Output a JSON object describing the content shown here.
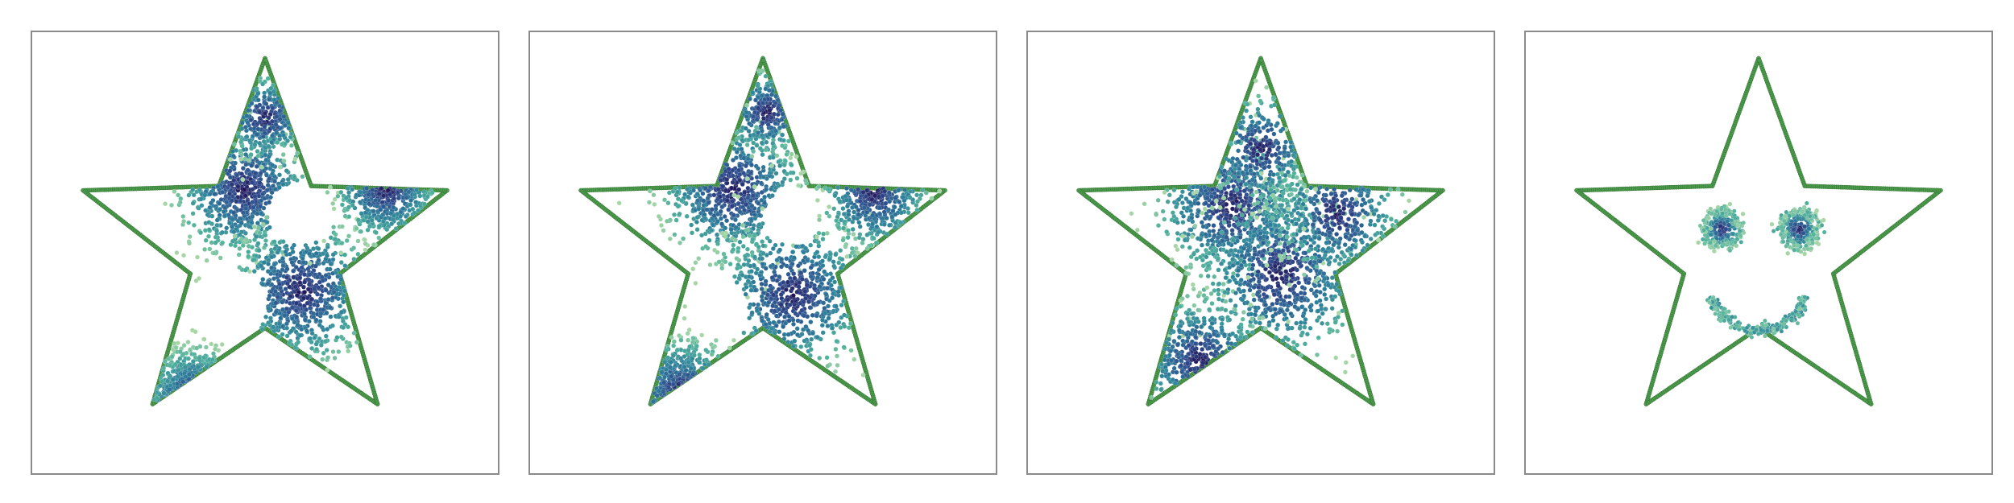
{
  "chart_data": [
    {
      "type": "scatter",
      "title": "",
      "xlabel": "",
      "ylabel": "",
      "xlim": [
        -1.05,
        1.05
      ],
      "ylim": [
        -1.05,
        1.05
      ],
      "grid": false,
      "legend": "none",
      "colormap": [
        "#1f0a4d",
        "#2f4b8c",
        "#2d7f9a",
        "#4fb09b",
        "#a7d6a6"
      ],
      "outline_color": "#4c9a4c",
      "series": [
        {
          "role": "boundary",
          "shape": "star",
          "points": 5,
          "outer_radius": 0.95,
          "inner_radius": 0.39
        },
        {
          "role": "samples",
          "clusters": [
            {
              "cx": -0.1,
              "cy": 0.3,
              "spread": 0.16,
              "count": 650
            },
            {
              "cx": 0.18,
              "cy": -0.2,
              "spread": 0.17,
              "count": 650
            },
            {
              "cx": 0.6,
              "cy": 0.3,
              "spread": 0.12,
              "count": 320
            },
            {
              "cx": -0.35,
              "cy": -0.75,
              "spread": 0.12,
              "count": 260
            },
            {
              "cx": 0.0,
              "cy": 0.65,
              "spread": 0.1,
              "count": 220
            }
          ],
          "holes": [
            {
              "cx": 0.18,
              "cy": 0.18,
              "r": 0.16
            },
            {
              "cx": -0.18,
              "cy": -0.28,
              "r": 0.19
            }
          ]
        }
      ]
    },
    {
      "type": "scatter",
      "title": "",
      "xlabel": "",
      "ylabel": "",
      "xlim": [
        -1.05,
        1.05
      ],
      "ylim": [
        -1.05,
        1.05
      ],
      "grid": false,
      "legend": "none",
      "colormap": [
        "#1f0a4d",
        "#2f4b8c",
        "#2d7f9a",
        "#4fb09b",
        "#a7d6a6"
      ],
      "outline_color": "#4c9a4c",
      "series": [
        {
          "role": "boundary",
          "shape": "star",
          "points": 5,
          "outer_radius": 0.95,
          "inner_radius": 0.39
        },
        {
          "role": "samples",
          "clusters": [
            {
              "cx": -0.15,
              "cy": 0.3,
              "spread": 0.17,
              "count": 600
            },
            {
              "cx": 0.15,
              "cy": -0.22,
              "spread": 0.18,
              "count": 600
            },
            {
              "cx": 0.55,
              "cy": 0.28,
              "spread": 0.13,
              "count": 320
            },
            {
              "cx": -0.4,
              "cy": -0.72,
              "spread": 0.13,
              "count": 260
            },
            {
              "cx": 0.02,
              "cy": 0.68,
              "spread": 0.1,
              "count": 220
            }
          ],
          "holes": [
            {
              "cx": 0.14,
              "cy": 0.16,
              "r": 0.14
            },
            {
              "cx": -0.22,
              "cy": -0.3,
              "r": 0.15
            }
          ]
        }
      ]
    },
    {
      "type": "scatter",
      "title": "",
      "xlabel": "",
      "ylabel": "",
      "xlim": [
        -1.05,
        1.05
      ],
      "ylim": [
        -1.05,
        1.05
      ],
      "grid": false,
      "legend": "none",
      "colormap": [
        "#1f0a4d",
        "#2f4b8c",
        "#2d7f9a",
        "#4fb09b",
        "#a7d6a6"
      ],
      "outline_color": "#4c9a4c",
      "series": [
        {
          "role": "boundary",
          "shape": "star",
          "points": 5,
          "outer_radius": 0.95,
          "inner_radius": 0.39
        },
        {
          "role": "samples",
          "clusters": [
            {
              "cx": -0.15,
              "cy": 0.22,
              "spread": 0.18,
              "count": 700
            },
            {
              "cx": 0.1,
              "cy": -0.12,
              "spread": 0.2,
              "count": 700
            },
            {
              "cx": 0.38,
              "cy": 0.18,
              "spread": 0.15,
              "count": 350
            },
            {
              "cx": -0.3,
              "cy": -0.55,
              "spread": 0.15,
              "count": 300
            },
            {
              "cx": 0.0,
              "cy": 0.5,
              "spread": 0.13,
              "count": 250
            }
          ],
          "holes": []
        }
      ]
    },
    {
      "type": "scatter",
      "title": "",
      "xlabel": "",
      "ylabel": "",
      "xlim": [
        -1.05,
        1.05
      ],
      "ylim": [
        -1.05,
        1.05
      ],
      "grid": false,
      "legend": "none",
      "colormap": [
        "#1f0a4d",
        "#2f4b8c",
        "#2d7f9a",
        "#4fb09b",
        "#a7d6a6"
      ],
      "outline_color": "#4c9a4c",
      "series": [
        {
          "role": "boundary",
          "shape": "star",
          "points": 5,
          "outer_radius": 0.95,
          "inner_radius": 0.39
        },
        {
          "role": "samples",
          "clusters": [
            {
              "cx": -0.18,
              "cy": 0.1,
              "spread": 0.045,
              "count": 160
            },
            {
              "cx": 0.2,
              "cy": 0.1,
              "spread": 0.045,
              "count": 160
            }
          ],
          "rings": [
            {
              "cx": -0.18,
              "cy": 0.1,
              "r": 0.09,
              "count": 120
            },
            {
              "cx": 0.2,
              "cy": 0.1,
              "r": 0.09,
              "count": 120
            }
          ],
          "arcs": [
            {
              "cx": 0.0,
              "cy": -0.15,
              "r": 0.25,
              "start_deg": 200,
              "end_deg": 340,
              "count": 220
            }
          ],
          "holes": []
        }
      ]
    }
  ]
}
